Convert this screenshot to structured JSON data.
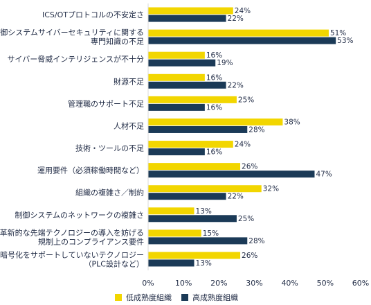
{
  "chart_data": {
    "type": "bar",
    "orientation": "horizontal",
    "categories": [
      [
        "ICS/OTプロトコルの不安定さ"
      ],
      [
        "制御システムサイバーセキュリティに関する",
        "専門知識の不足"
      ],
      [
        "サイバー脅威インテリジェンスが不十分"
      ],
      [
        "財源不足"
      ],
      [
        "管理職のサポート不足"
      ],
      [
        "人材不足"
      ],
      [
        "技術・ツールの不足"
      ],
      [
        "運用要件（必須稼働時間など）"
      ],
      [
        "組織の複雑さ／制約"
      ],
      [
        "制御システムのネットワークの複雑さ"
      ],
      [
        "革新的な先端テクノロジーの導入を妨げる",
        "規制上のコンプライアンス要件"
      ],
      [
        "暗号化をサポートしていないテクノロジー",
        "（PLC設計など）"
      ]
    ],
    "series": [
      {
        "name": "低成熟度組織",
        "color": "#f2d600",
        "values": [
          24,
          51,
          16,
          16,
          25,
          38,
          24,
          26,
          32,
          13,
          15,
          26
        ]
      },
      {
        "name": "高成熟度組織",
        "color": "#1b3a57",
        "values": [
          22,
          53,
          19,
          22,
          16,
          28,
          16,
          47,
          22,
          25,
          28,
          13
        ]
      }
    ],
    "value_suffix": "%",
    "xlim": [
      0,
      60
    ],
    "xticks": [
      "0%",
      "10%",
      "20%",
      "30%",
      "40%",
      "50%",
      "60%"
    ],
    "grid": false,
    "legend_position": "bottom-center"
  }
}
